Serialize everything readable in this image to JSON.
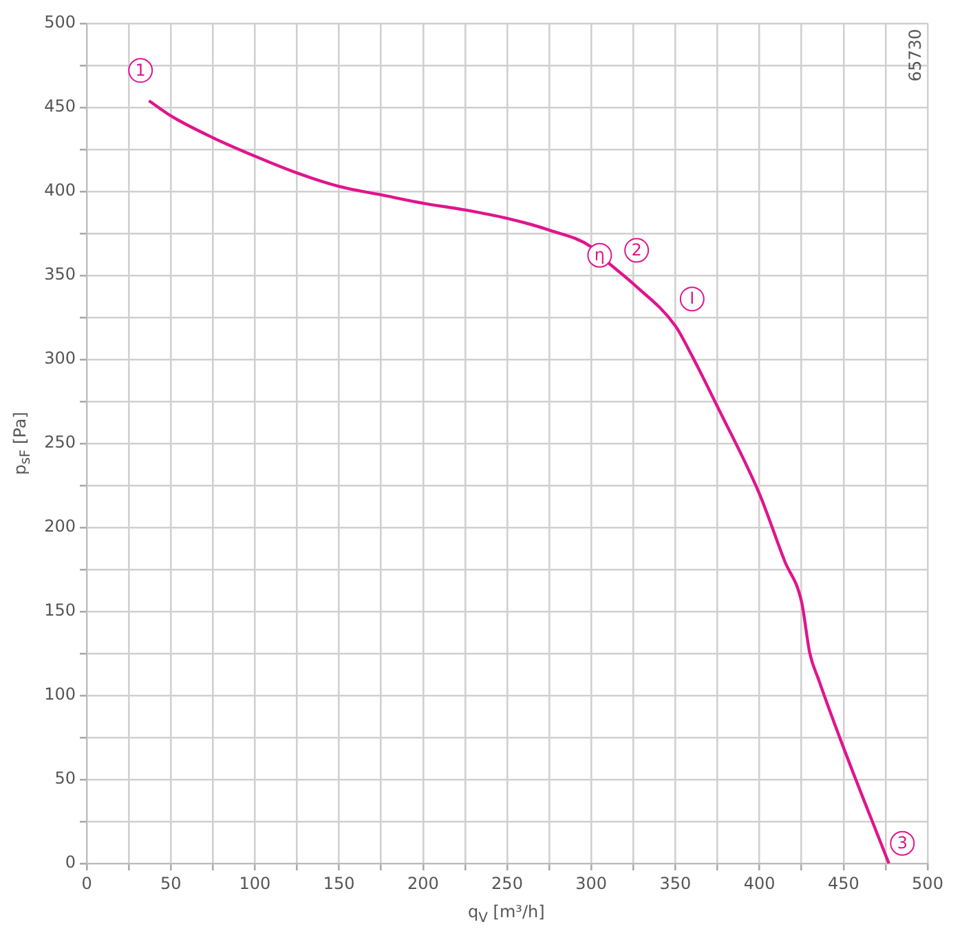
{
  "chart_data": {
    "type": "line",
    "xlabel": "q$_{V}$ [m³/h]",
    "ylabel": "p$_{sF}$ [Pa]",
    "x": [
      37,
      50,
      75,
      100,
      125,
      150,
      175,
      200,
      225,
      250,
      275,
      300,
      305,
      325,
      350,
      360,
      375,
      400,
      415,
      425,
      430,
      435,
      450,
      477
    ],
    "series": [
      {
        "color": "#e0158c",
        "values": [
          454,
          445,
          432,
          421,
          411,
          403,
          398,
          393,
          389,
          384,
          377,
          367,
          362,
          345,
          320,
          302,
          272,
          220,
          180,
          156,
          125,
          110,
          69,
          0
        ]
      }
    ],
    "xlim": [
      0,
      500
    ],
    "ylim": [
      0,
      500
    ],
    "xticks": [
      0,
      {
        "value": 25,
        "label": null
      },
      50,
      {
        "value": 75,
        "label": null
      },
      100,
      {
        "value": 125,
        "label": null
      },
      150,
      {
        "value": 175,
        "label": null
      },
      200,
      {
        "value": 225,
        "label": null
      },
      250,
      {
        "value": 275,
        "label": null
      },
      300,
      {
        "value": 325,
        "label": null
      },
      350,
      {
        "value": 375,
        "label": null
      },
      400,
      {
        "value": 425,
        "label": null
      },
      450,
      {
        "value": 475,
        "label": null
      },
      500
    ],
    "yticks": [
      0,
      {
        "value": 25,
        "label": null
      },
      50,
      {
        "value": 75,
        "label": null
      },
      100,
      {
        "value": 125,
        "label": null
      },
      150,
      {
        "value": 175,
        "label": null
      },
      200,
      {
        "value": 225,
        "label": null
      },
      250,
      {
        "value": 275,
        "label": null
      },
      300,
      {
        "value": 325,
        "label": null
      },
      350,
      {
        "value": 375,
        "label": null
      },
      400,
      {
        "value": 425,
        "label": null
      },
      450,
      {
        "value": 475,
        "label": null
      },
      500
    ],
    "grid": true,
    "legend": false,
    "marker": "none",
    "line_style": "solid",
    "annotations": [
      {
        "text": "1",
        "x": 32,
        "y": 472
      },
      {
        "text": "2",
        "x": 327,
        "y": 365
      },
      {
        "text": "η",
        "x": 305,
        "y": 362
      },
      {
        "text": "I",
        "x": 360,
        "y": 336
      },
      {
        "text": "3",
        "x": 485,
        "y": 12
      },
      "65730"
    ]
  }
}
